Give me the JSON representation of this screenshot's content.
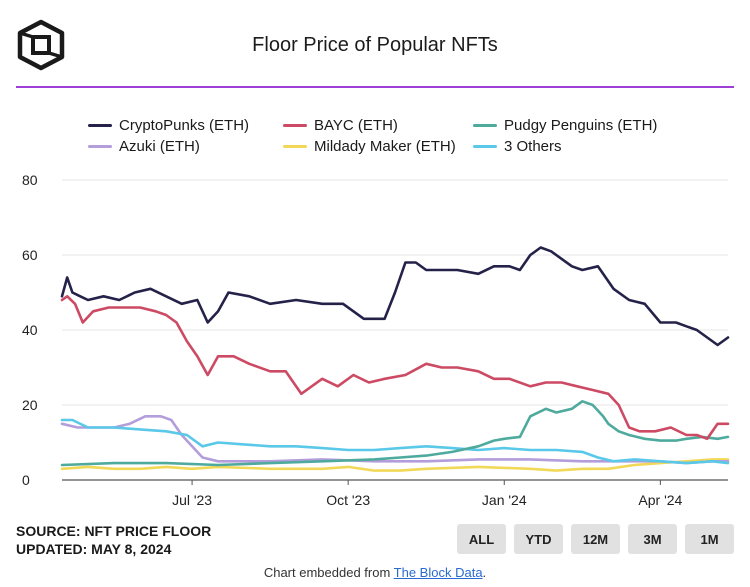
{
  "header": {
    "logo_icon": "cube-logo-icon",
    "title": "Floor Price of Popular NFTs",
    "accent_color": "#9b3fd6"
  },
  "chart_data": {
    "type": "line",
    "title": "Floor Price of Popular NFTs",
    "xlabel": "",
    "ylabel": "",
    "ylim": [
      0,
      80
    ],
    "yticks": [
      "0",
      "20",
      "40",
      "60",
      "80"
    ],
    "xticks": [
      {
        "label": "Jul '23",
        "month": 2.5
      },
      {
        "label": "Oct '23",
        "month": 5.5
      },
      {
        "label": "Jan '24",
        "month": 8.5
      },
      {
        "label": "Apr '24",
        "month": 11.5
      }
    ],
    "x_unit": "months since mid-April 2023",
    "xlim": [
      0,
      12.8
    ],
    "grid": true,
    "legend_position": "top",
    "series": [
      {
        "name": "CryptoPunks (ETH)",
        "color": "#25224a",
        "x": [
          0,
          0.1,
          0.2,
          0.35,
          0.5,
          0.8,
          1.1,
          1.4,
          1.7,
          2.0,
          2.3,
          2.6,
          2.8,
          3.0,
          3.2,
          3.6,
          4.0,
          4.5,
          5.0,
          5.4,
          5.8,
          6.2,
          6.4,
          6.6,
          6.8,
          7.0,
          7.3,
          7.6,
          8.0,
          8.3,
          8.6,
          8.8,
          9.0,
          9.2,
          9.4,
          9.6,
          9.8,
          10.0,
          10.3,
          10.6,
          10.9,
          11.2,
          11.5,
          11.8,
          12.0,
          12.2,
          12.4,
          12.6,
          12.8
        ],
        "values": [
          49,
          54,
          50,
          49,
          48,
          49,
          48,
          50,
          51,
          49,
          47,
          48,
          42,
          45,
          50,
          49,
          47,
          48,
          47,
          47,
          43,
          43,
          50,
          58,
          58,
          56,
          56,
          56,
          55,
          57,
          57,
          56,
          60,
          62,
          61,
          59,
          57,
          56,
          57,
          51,
          48,
          47,
          42,
          42,
          41,
          40,
          38,
          36,
          38
        ]
      },
      {
        "name": "BAYC (ETH)",
        "color": "#cc4a63",
        "x": [
          0,
          0.1,
          0.25,
          0.4,
          0.6,
          0.9,
          1.2,
          1.5,
          1.8,
          2.0,
          2.2,
          2.4,
          2.6,
          2.8,
          3.0,
          3.3,
          3.6,
          4.0,
          4.3,
          4.6,
          5.0,
          5.3,
          5.6,
          5.9,
          6.2,
          6.6,
          7.0,
          7.3,
          7.6,
          8.0,
          8.3,
          8.6,
          9.0,
          9.3,
          9.6,
          9.9,
          10.2,
          10.5,
          10.7,
          10.9,
          11.1,
          11.4,
          11.7,
          12.0,
          12.2,
          12.4,
          12.6,
          12.8
        ],
        "values": [
          48,
          49,
          47,
          42,
          45,
          46,
          46,
          46,
          45,
          44,
          42,
          37,
          33,
          28,
          33,
          33,
          31,
          29,
          29,
          23,
          27,
          25,
          28,
          26,
          27,
          28,
          31,
          30,
          30,
          29,
          27,
          27,
          25,
          26,
          26,
          25,
          24,
          23,
          20,
          14,
          13,
          13,
          14,
          12,
          12,
          11,
          15,
          15
        ]
      },
      {
        "name": "Pudgy Penguins (ETH)",
        "color": "#4faa9e",
        "x": [
          0,
          1.0,
          2.0,
          3.0,
          4.0,
          5.0,
          6.0,
          6.5,
          7.0,
          7.5,
          8.0,
          8.3,
          8.5,
          8.8,
          9.0,
          9.3,
          9.5,
          9.8,
          10.0,
          10.2,
          10.4,
          10.5,
          10.7,
          10.9,
          11.2,
          11.5,
          11.8,
          12.0,
          12.3,
          12.6,
          12.8
        ],
        "values": [
          4,
          4.5,
          4.5,
          4,
          4.5,
          5,
          5.5,
          6,
          6.5,
          7.5,
          9,
          10.5,
          11,
          11.5,
          17,
          19,
          18,
          19,
          21,
          20,
          17,
          15,
          13,
          12,
          11,
          10.5,
          10.5,
          11,
          11.5,
          11,
          11.5
        ]
      },
      {
        "name": "Azuki (ETH)",
        "color": "#b39ddb",
        "x": [
          0,
          0.3,
          0.6,
          1.0,
          1.3,
          1.6,
          1.9,
          2.1,
          2.3,
          2.5,
          2.7,
          3.0,
          3.5,
          4.0,
          5.0,
          6.0,
          7.0,
          8.0,
          9.0,
          10.0,
          10.5,
          11.0,
          11.5,
          12.0,
          12.5,
          12.8
        ],
        "values": [
          15,
          14,
          14,
          14,
          15,
          17,
          17,
          16,
          12,
          9,
          6,
          5,
          5,
          5,
          5.5,
          5,
          5,
          5.5,
          5.5,
          5,
          5,
          5,
          5,
          4.5,
          5,
          5
        ]
      },
      {
        "name": "Mildady Maker (ETH)",
        "color": "#f1d957",
        "x": [
          0,
          0.5,
          1.0,
          1.5,
          2.0,
          2.5,
          3.0,
          4.0,
          5.0,
          5.5,
          6.0,
          6.5,
          7.0,
          8.0,
          9.0,
          9.5,
          10.0,
          10.5,
          11.0,
          11.5,
          12.0,
          12.5,
          12.8
        ],
        "values": [
          3,
          3.5,
          3,
          3,
          3.5,
          3,
          3.5,
          3,
          3,
          3.5,
          2.5,
          2.5,
          3,
          3.5,
          3,
          2.5,
          3,
          3,
          4,
          4.5,
          5,
          5.5,
          5.5
        ]
      },
      {
        "name": "3 Others",
        "color": "#5ac8e8",
        "x": [
          0,
          0.2,
          0.5,
          1.0,
          1.5,
          2.0,
          2.4,
          2.7,
          3.0,
          3.5,
          4.0,
          4.5,
          5.0,
          5.5,
          6.0,
          6.5,
          7.0,
          7.5,
          8.0,
          8.5,
          9.0,
          9.5,
          10.0,
          10.3,
          10.6,
          11.0,
          11.5,
          12.0,
          12.5,
          12.8
        ],
        "values": [
          16,
          16,
          14,
          14,
          13.5,
          13,
          12,
          9,
          10,
          9.5,
          9,
          9,
          8.5,
          8,
          8,
          8.5,
          9,
          8.5,
          8,
          8.5,
          8,
          8,
          7.5,
          6,
          5,
          5.5,
          5,
          4.5,
          5,
          4.5
        ]
      }
    ]
  },
  "footer": {
    "source_line": "SOURCE: NFT PRICE FLOOR",
    "updated_line": "UPDATED: MAY 8, 2024",
    "ranges": [
      "ALL",
      "YTD",
      "12M",
      "3M",
      "1M"
    ],
    "embed_prefix": "Chart embedded from ",
    "embed_link": "The Block Data",
    "embed_suffix": "."
  }
}
